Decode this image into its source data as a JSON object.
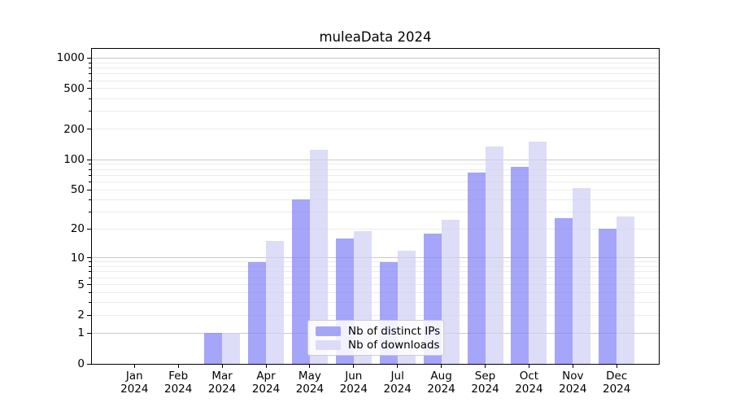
{
  "title": "muleaData 2024",
  "legend": {
    "items": [
      {
        "label": "Nb of distinct IPs",
        "color": "#a5a5f6"
      },
      {
        "label": "Nb of downloads",
        "color": "#dcdcf8"
      }
    ]
  },
  "chart_data": {
    "type": "bar",
    "title": "muleaData 2024",
    "y_scale": "log1p (symlog-like: vertical position proportional to log10(value+1))",
    "categories": [
      "Jan 2024",
      "Feb 2024",
      "Mar 2024",
      "Apr 2024",
      "May 2024",
      "Jun 2024",
      "Jul 2024",
      "Aug 2024",
      "Sep 2024",
      "Oct 2024",
      "Nov 2024",
      "Dec 2024"
    ],
    "series": [
      {
        "name": "Nb of distinct IPs",
        "color": "rgba(130,130,246,0.72)",
        "legend_color": "#a5a5f6",
        "values": [
          0,
          0,
          1,
          9,
          40,
          16,
          9,
          18,
          75,
          85,
          26,
          20
        ]
      },
      {
        "name": "Nb of downloads",
        "color": "rgba(208,208,245,0.72)",
        "legend_color": "#dcdcf8",
        "values": [
          0,
          0,
          1,
          15,
          125,
          19,
          12,
          25,
          135,
          150,
          52,
          27
        ]
      }
    ],
    "yticks": [
      0,
      1,
      2,
      5,
      10,
      20,
      50,
      100,
      200,
      500,
      1000
    ],
    "major_gridlines": [
      1,
      10,
      100,
      1000
    ],
    "minor_gridlines": [
      2,
      3,
      4,
      5,
      6,
      7,
      8,
      9,
      20,
      30,
      40,
      50,
      60,
      70,
      80,
      90,
      200,
      300,
      400,
      500,
      600,
      700,
      800,
      900
    ],
    "ylim": [
      0,
      1233
    ],
    "grid": "both horizontal (major darker, minor lighter), no vertical gridlines",
    "legend_position": "inside plot, lower middle",
    "colors": {
      "major_grid": "#c9c9c9",
      "minor_grid": "#ececec",
      "axis": "#000000",
      "background": "#ffffff"
    }
  }
}
